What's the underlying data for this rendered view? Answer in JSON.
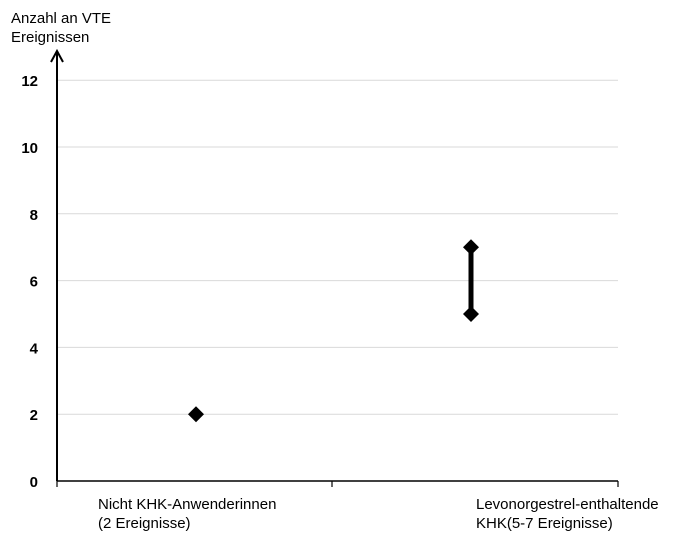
{
  "chart_data": {
    "type": "scatter",
    "title": "",
    "ylabel_lines": [
      "Anzahl an VTE",
      "Ereignissen"
    ],
    "xlabel": "",
    "ylim": [
      0,
      13
    ],
    "yticks": [
      0,
      2,
      4,
      6,
      8,
      10,
      12
    ],
    "grid": true,
    "legend": "none",
    "categories": [
      {
        "lines": [
          "Nicht KHK-Anwenderinnen",
          "(2 Ereignisse)"
        ]
      },
      {
        "lines": [
          "Levonorgestrel-enthaltende",
          "KHK(5-7 Ereignisse)"
        ]
      }
    ],
    "points": [
      {
        "category": 0,
        "low": 2,
        "high": 2
      },
      {
        "category": 1,
        "low": 5,
        "high": 7
      }
    ],
    "marker": "diamond",
    "marker_color": "#000000",
    "grid_color": "#d9d9d9"
  }
}
